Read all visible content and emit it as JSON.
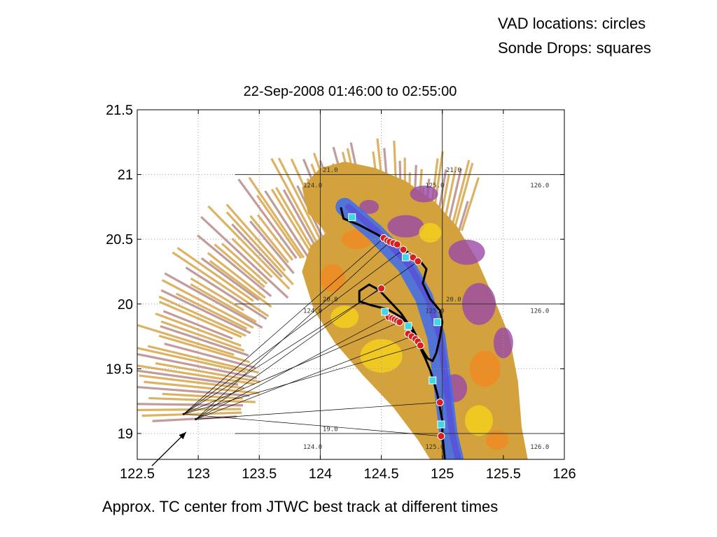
{
  "legend_notes": {
    "vad": "VAD locations: circles",
    "sonde": "Sonde Drops: squares"
  },
  "footer_annotation": "Approx. TC center from JTWC best track at different times",
  "colors": {
    "radar_base": "#d3a23c",
    "radar_orange": "#f08a1f",
    "radar_yellow": "#f6d21c",
    "radar_purple": "#9a4aa8",
    "radar_blue": "#3b6cf0",
    "vad_marker": "#d81e1e",
    "sonde_marker": "#3fd6e6",
    "track": "#000000",
    "grid": "#a0a0a0"
  },
  "chart_data": {
    "type": "scatter",
    "title": "22-Sep-2008 01:46:00 to 02:55:00",
    "xlabel": "",
    "ylabel": "",
    "xlim": [
      122.5,
      126
    ],
    "ylim": [
      18.8,
      21.5
    ],
    "x_ticks": [
      "122.5",
      "123",
      "123.5",
      "124",
      "124.5",
      "125",
      "125.5",
      "126"
    ],
    "y_ticks": [
      "19",
      "19.5",
      "20",
      "20.5",
      "21",
      "21.5"
    ],
    "grid": true,
    "map_grid_labels": [
      {
        "text": "21.0",
        "x": 124.02,
        "y": 21.02
      },
      {
        "text": "21.0",
        "x": 125.03,
        "y": 21.02
      },
      {
        "text": "124.0",
        "x": 123.86,
        "y": 20.9
      },
      {
        "text": "125.0",
        "x": 124.86,
        "y": 20.9
      },
      {
        "text": "126.0",
        "x": 125.72,
        "y": 20.9
      },
      {
        "text": "20.0",
        "x": 124.02,
        "y": 20.02
      },
      {
        "text": "20.0",
        "x": 125.03,
        "y": 20.02
      },
      {
        "text": "124.0",
        "x": 123.86,
        "y": 19.93
      },
      {
        "text": "125.0",
        "x": 124.86,
        "y": 19.93
      },
      {
        "text": "126.0",
        "x": 125.72,
        "y": 19.93
      },
      {
        "text": "19.0",
        "x": 124.02,
        "y": 19.02
      },
      {
        "text": "124.0",
        "x": 123.86,
        "y": 18.88
      },
      {
        "text": "125.0",
        "x": 124.86,
        "y": 18.88
      },
      {
        "text": "126.0",
        "x": 125.72,
        "y": 18.88
      }
    ],
    "flight_track": [
      [
        124.17,
        20.74
      ],
      [
        124.19,
        20.66
      ],
      [
        124.32,
        20.61
      ],
      [
        124.52,
        20.51
      ],
      [
        124.7,
        20.41
      ],
      [
        124.82,
        20.33
      ],
      [
        124.87,
        20.27
      ],
      [
        124.84,
        20.16
      ],
      [
        124.9,
        20.04
      ],
      [
        124.98,
        19.95
      ],
      [
        125.0,
        19.86
      ],
      [
        124.98,
        19.74
      ],
      [
        124.95,
        19.62
      ],
      [
        124.92,
        19.56
      ],
      [
        124.88,
        19.58
      ],
      [
        124.84,
        19.64
      ],
      [
        124.8,
        19.73
      ],
      [
        124.75,
        19.82
      ],
      [
        124.66,
        19.9
      ],
      [
        124.55,
        19.96
      ],
      [
        124.42,
        19.99
      ],
      [
        124.32,
        20.02
      ],
      [
        124.32,
        20.1
      ],
      [
        124.4,
        20.15
      ],
      [
        124.48,
        20.11
      ],
      [
        124.57,
        20.02
      ],
      [
        124.66,
        19.93
      ],
      [
        124.74,
        19.82
      ],
      [
        124.8,
        19.7
      ],
      [
        124.86,
        19.58
      ],
      [
        124.9,
        19.49
      ],
      [
        124.93,
        19.4
      ],
      [
        124.96,
        19.3
      ],
      [
        124.98,
        19.2
      ],
      [
        125.0,
        19.1
      ],
      [
        125.0,
        19.0
      ],
      [
        125.02,
        18.8
      ]
    ],
    "vad_locations": [
      [
        124.52,
        20.51
      ],
      [
        124.55,
        20.49
      ],
      [
        124.57,
        20.48
      ],
      [
        124.6,
        20.47
      ],
      [
        124.63,
        20.46
      ],
      [
        124.68,
        20.42
      ],
      [
        124.73,
        20.37
      ],
      [
        124.76,
        20.36
      ],
      [
        124.8,
        20.33
      ],
      [
        124.5,
        20.12
      ],
      [
        124.56,
        19.9
      ],
      [
        124.59,
        19.89
      ],
      [
        124.61,
        19.88
      ],
      [
        124.63,
        19.87
      ],
      [
        124.65,
        19.86
      ],
      [
        124.72,
        19.77
      ],
      [
        124.75,
        19.75
      ],
      [
        124.78,
        19.73
      ],
      [
        124.8,
        19.71
      ],
      [
        124.82,
        19.68
      ],
      [
        124.98,
        19.24
      ],
      [
        124.99,
        18.98
      ]
    ],
    "sonde_drops": [
      [
        124.26,
        20.67
      ],
      [
        124.7,
        20.36
      ],
      [
        124.53,
        19.94
      ],
      [
        124.72,
        19.83
      ],
      [
        124.96,
        19.86
      ],
      [
        124.92,
        19.41
      ],
      [
        124.99,
        19.07
      ]
    ],
    "tc_center_points": [
      [
        122.88,
        19.15
      ],
      [
        122.98,
        19.11
      ]
    ],
    "tc_link_targets": [
      [
        124.52,
        20.51
      ],
      [
        124.57,
        20.48
      ],
      [
        124.68,
        20.42
      ],
      [
        124.8,
        20.33
      ],
      [
        124.5,
        20.12
      ],
      [
        124.56,
        19.9
      ],
      [
        124.65,
        19.86
      ],
      [
        124.75,
        19.75
      ],
      [
        124.82,
        19.68
      ],
      [
        124.98,
        19.24
      ],
      [
        124.99,
        18.98
      ]
    ],
    "tc_arrow": {
      "from": [
        122.62,
        18.75
      ],
      "to": [
        122.9,
        19.01
      ]
    }
  }
}
